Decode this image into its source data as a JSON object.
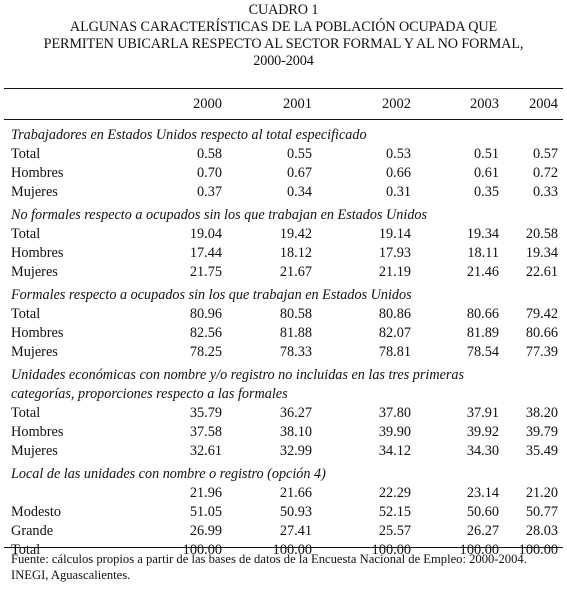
{
  "header": {
    "cuadro": "CUADRO 1",
    "title_lines": [
      "ALGUNAS CARACTERÍSTICAS DE LA POBLACIÓN OCUPADA QUE",
      "PERMITEN UBICARLA RESPECTO AL SECTOR FORMAL Y AL NO FORMAL,",
      "2000-2004"
    ]
  },
  "years": [
    "2000",
    "2001",
    "2002",
    "2003",
    "2004"
  ],
  "sections": [
    {
      "title": "Trabajadores en Estados Unidos respecto al total especificado",
      "rows": [
        {
          "label": "Total",
          "values": [
            "0.58",
            "0.55",
            "0.53",
            "0.51",
            "0.57"
          ]
        },
        {
          "label": "Hombres",
          "values": [
            "0.70",
            "0.67",
            "0.66",
            "0.61",
            "0.72"
          ]
        },
        {
          "label": "Mujeres",
          "values": [
            "0.37",
            "0.34",
            "0.31",
            "0.35",
            "0.33"
          ]
        }
      ]
    },
    {
      "title": "No formales respecto a ocupados sin los que trabajan en Estados Unidos",
      "rows": [
        {
          "label": "Total",
          "values": [
            "19.04",
            "19.42",
            "19.14",
            "19.34",
            "20.58"
          ]
        },
        {
          "label": "Hombres",
          "values": [
            "17.44",
            "18.12",
            "17.93",
            "18.11",
            "19.34"
          ]
        },
        {
          "label": "Mujeres",
          "values": [
            "21.75",
            "21.67",
            "21.19",
            "21.46",
            "22.61"
          ]
        }
      ]
    },
    {
      "title": "Formales respecto a ocupados sin los que trabajan en Estados Unidos",
      "rows": [
        {
          "label": "Total",
          "values": [
            "80.96",
            "80.58",
            "80.86",
            "80.66",
            "79.42"
          ]
        },
        {
          "label": "Hombres",
          "values": [
            "82.56",
            "81.88",
            "82.07",
            "81.89",
            "80.66"
          ]
        },
        {
          "label": "Mujeres",
          "values": [
            "78.25",
            "78.33",
            "78.81",
            "78.54",
            "77.39"
          ]
        }
      ]
    },
    {
      "title": "Unidades económicas con nombre y/o registro no incluidas en las tres primeras categorías, proporciones respecto a las formales",
      "title_lines": [
        "Unidades económicas con nombre y/o registro no incluidas en las tres primeras",
        "categorías, proporciones respecto a las formales"
      ],
      "rows": [
        {
          "label": "Total",
          "values": [
            "35.79",
            "36.27",
            "37.80",
            "37.91",
            "38.20"
          ]
        },
        {
          "label": "Hombres",
          "values": [
            "37.58",
            "38.10",
            "39.90",
            "39.92",
            "39.79"
          ]
        },
        {
          "label": "Mujeres",
          "values": [
            "32.61",
            "32.99",
            "34.12",
            "34.30",
            "35.49"
          ]
        }
      ]
    },
    {
      "title": "Local de las unidades con nombre o registro (opción 4)",
      "rows": [
        {
          "label": "",
          "values": [
            "21.96",
            "21.66",
            "22.29",
            "23.14",
            "21.20"
          ]
        },
        {
          "label": "Modesto",
          "values": [
            "51.05",
            "50.93",
            "52.15",
            "50.60",
            "50.77"
          ]
        },
        {
          "label": "Grande",
          "values": [
            "26.99",
            "27.41",
            "25.57",
            "26.27",
            "28.03"
          ]
        },
        {
          "label": "Total",
          "values": [
            "100.00",
            "100.00",
            "100.00",
            "100.00",
            "100.00"
          ]
        }
      ]
    }
  ],
  "source": "Fuente: cálculos propios a partir de las bases de datos de la Encuesta Nacional de Empleo: 2000-2004. INEGI, Aguascalientes."
}
